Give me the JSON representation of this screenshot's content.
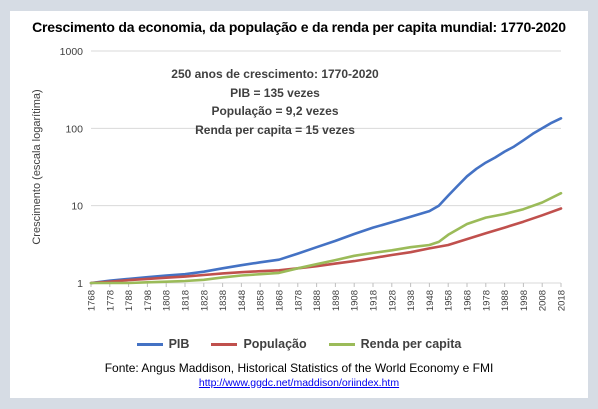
{
  "chart_data": {
    "type": "line",
    "title": "Crescimento da economia, da população e da renda per capita mundial: 1770-2020",
    "ylabel": "Crescimento (escala logarítima)",
    "xlabel": "",
    "yscale": "log",
    "ylim": [
      1,
      1000
    ],
    "ytick_labels": [
      "1",
      "10",
      "100",
      "1000"
    ],
    "ytick_values": [
      1,
      10,
      100,
      1000
    ],
    "xlim": [
      1768,
      2018
    ],
    "xtick_labels": [
      "1768",
      "1778",
      "1788",
      "1798",
      "1808",
      "1818",
      "1828",
      "1838",
      "1848",
      "1858",
      "1868",
      "1878",
      "1888",
      "1898",
      "1908",
      "1918",
      "1928",
      "1938",
      "1948",
      "1958",
      "1968",
      "1978",
      "1988",
      "1998",
      "2008",
      "2018"
    ],
    "xtick_values": [
      1768,
      1778,
      1788,
      1798,
      1808,
      1818,
      1828,
      1838,
      1848,
      1858,
      1868,
      1878,
      1888,
      1898,
      1908,
      1918,
      1928,
      1938,
      1948,
      1958,
      1968,
      1978,
      1988,
      1998,
      2008,
      2018
    ],
    "grid": "horizontal",
    "legend_position": "bottom",
    "annotation": [
      "250 anos de crescimento: 1770-2020",
      "PIB = 135 vezes",
      "População = 9,2 vezes",
      "Renda per capita = 15 vezes"
    ],
    "series": [
      {
        "name": "PIB",
        "color": "#4472c4",
        "points": [
          [
            1768,
            1
          ],
          [
            1778,
            1.07
          ],
          [
            1788,
            1.13
          ],
          [
            1798,
            1.19
          ],
          [
            1808,
            1.25
          ],
          [
            1818,
            1.3
          ],
          [
            1828,
            1.4
          ],
          [
            1838,
            1.55
          ],
          [
            1848,
            1.7
          ],
          [
            1858,
            1.85
          ],
          [
            1868,
            2.0
          ],
          [
            1878,
            2.4
          ],
          [
            1888,
            2.9
          ],
          [
            1898,
            3.5
          ],
          [
            1908,
            4.3
          ],
          [
            1918,
            5.2
          ],
          [
            1928,
            6.1
          ],
          [
            1938,
            7.2
          ],
          [
            1948,
            8.5
          ],
          [
            1953,
            10.0
          ],
          [
            1958,
            13.5
          ],
          [
            1963,
            18
          ],
          [
            1968,
            24
          ],
          [
            1973,
            30
          ],
          [
            1978,
            36
          ],
          [
            1983,
            42
          ],
          [
            1988,
            50
          ],
          [
            1993,
            58
          ],
          [
            1998,
            70
          ],
          [
            2003,
            85
          ],
          [
            2008,
            100
          ],
          [
            2013,
            118
          ],
          [
            2018,
            135
          ]
        ]
      },
      {
        "name": "População",
        "color": "#c0504d",
        "points": [
          [
            1768,
            1
          ],
          [
            1778,
            1.04
          ],
          [
            1788,
            1.09
          ],
          [
            1798,
            1.13
          ],
          [
            1808,
            1.17
          ],
          [
            1818,
            1.21
          ],
          [
            1828,
            1.27
          ],
          [
            1838,
            1.33
          ],
          [
            1848,
            1.38
          ],
          [
            1858,
            1.42
          ],
          [
            1868,
            1.46
          ],
          [
            1878,
            1.55
          ],
          [
            1888,
            1.65
          ],
          [
            1898,
            1.78
          ],
          [
            1908,
            1.92
          ],
          [
            1918,
            2.1
          ],
          [
            1928,
            2.3
          ],
          [
            1938,
            2.5
          ],
          [
            1948,
            2.8
          ],
          [
            1958,
            3.1
          ],
          [
            1968,
            3.7
          ],
          [
            1978,
            4.4
          ],
          [
            1988,
            5.2
          ],
          [
            1998,
            6.2
          ],
          [
            2008,
            7.5
          ],
          [
            2018,
            9.2
          ]
        ]
      },
      {
        "name": "Renda per capita",
        "color": "#9bbb59",
        "points": [
          [
            1768,
            1
          ],
          [
            1778,
            1.0
          ],
          [
            1788,
            1.0
          ],
          [
            1798,
            1.02
          ],
          [
            1808,
            1.04
          ],
          [
            1818,
            1.06
          ],
          [
            1828,
            1.1
          ],
          [
            1838,
            1.18
          ],
          [
            1848,
            1.25
          ],
          [
            1858,
            1.3
          ],
          [
            1868,
            1.35
          ],
          [
            1878,
            1.55
          ],
          [
            1888,
            1.75
          ],
          [
            1898,
            1.98
          ],
          [
            1908,
            2.25
          ],
          [
            1918,
            2.45
          ],
          [
            1928,
            2.65
          ],
          [
            1938,
            2.9
          ],
          [
            1948,
            3.1
          ],
          [
            1953,
            3.4
          ],
          [
            1958,
            4.2
          ],
          [
            1968,
            5.8
          ],
          [
            1978,
            7.0
          ],
          [
            1988,
            7.8
          ],
          [
            1998,
            9.0
          ],
          [
            2008,
            11.0
          ],
          [
            2018,
            14.5
          ]
        ]
      }
    ]
  },
  "source": "Fonte: Angus Maddison, Historical Statistics of the World Economy e FMI",
  "link": "http://www.ggdc.net/maddison/oriindex.htm"
}
